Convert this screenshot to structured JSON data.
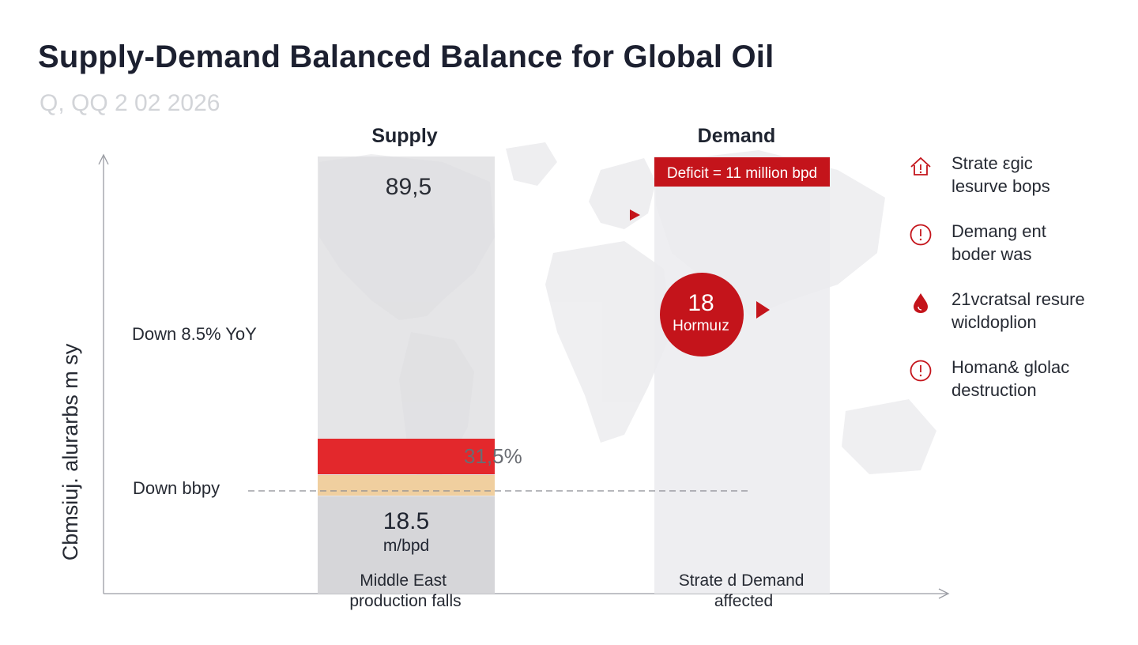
{
  "title": "Supply-Demand Balanced Balance for Global Oil",
  "subtitle": "Q, QQ 2 02 2026",
  "colors": {
    "accent_red": "#c4141b",
    "bar_red": "#e3282c",
    "bar_tan": "#f0cf9f",
    "bar_gray": "#d8d8db",
    "column_gray": "#ededf0",
    "map_gray": "#e6e6ea"
  },
  "legend": [
    {
      "icon": "house-warning-icon",
      "text": "Strate εgic\nlesurve bops"
    },
    {
      "icon": "alert-circle-icon",
      "text": "Demang ent\nboder was"
    },
    {
      "icon": "oil-drop-icon",
      "text": "21vcratsal resure\nwicldoplion"
    },
    {
      "icon": "alert-circle-icon",
      "text": "Homan& glolac\ndestruction"
    }
  ],
  "chart_data": {
    "type": "bar",
    "title": "Supply-Demand Balanced Balance for Global Oil",
    "subtitle": "Q, QQ 2 02 2026",
    "ylabel": "Cbmsiuj. alurarbs m sy",
    "xlabel": "",
    "categories": [
      "Supply",
      "Demand"
    ],
    "supply": {
      "top_value": "89,5",
      "segments": [
        {
          "color": "#e3282c",
          "label": "31,5%"
        },
        {
          "color": "#f0cf9f",
          "label": ""
        },
        {
          "color": "#d8d8db",
          "label": "18.5",
          "unit": "m/bpd"
        }
      ],
      "caption": "Middle East\nproduction falls"
    },
    "demand": {
      "deficit_label": "Deficit = 11 million bpd",
      "hormuz_value": "18",
      "hormuz_label": "Hormuız",
      "caption": "Strate d Demand\naffected"
    },
    "annotations": {
      "yoy": "Down 8.5% YoY",
      "reference_line": "Down bbpy"
    }
  }
}
